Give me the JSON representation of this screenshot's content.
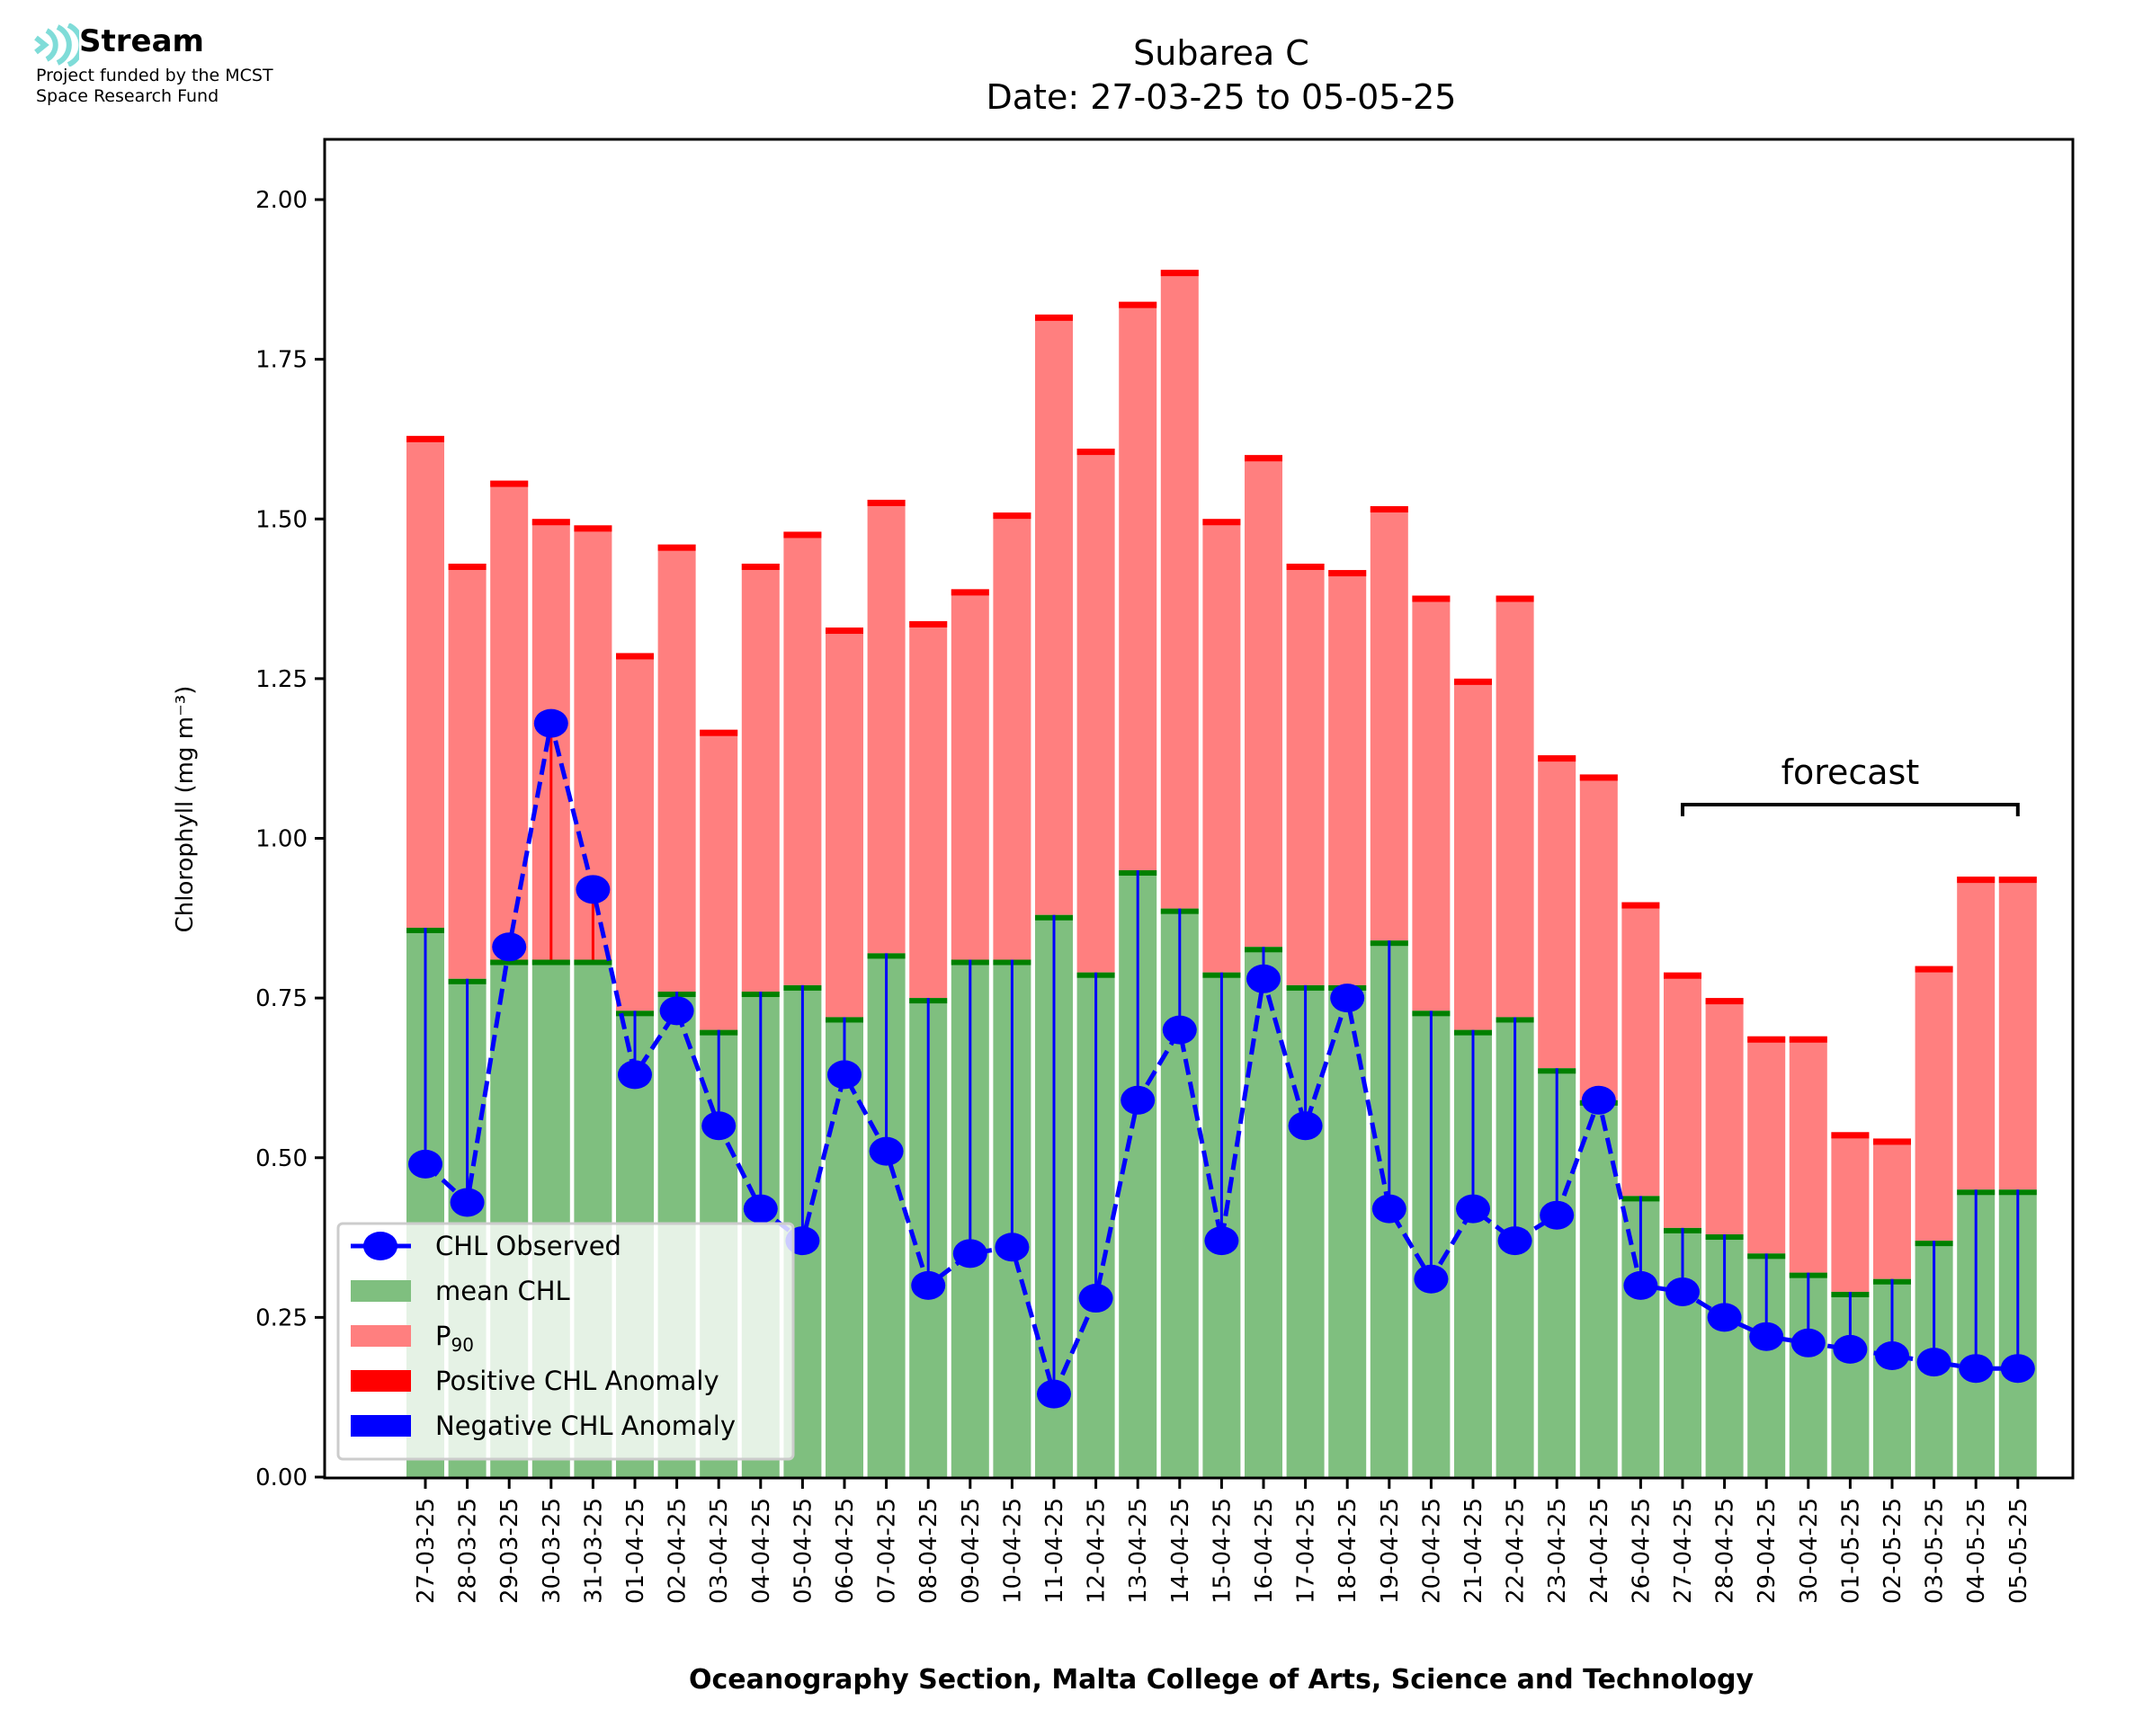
{
  "logo": {
    "brand": "Stream",
    "line1": "Project funded by the MCST",
    "line2": "Space Research Fund",
    "icon": "stream-waves-icon",
    "icon_color": "#7fdcd8"
  },
  "chart_data": {
    "type": "bar",
    "title": "Subarea C",
    "subtitle": "Date: 27-03-25 to 05-05-25",
    "xlabel": "Oceanography Section, Malta College of Arts, Science and Technology",
    "ylabel": "Chlorophyll (mg m⁻³)",
    "ylim": [
      0,
      2.09
    ],
    "yticks": [
      "0.00",
      "0.25",
      "0.50",
      "0.75",
      "1.00",
      "1.25",
      "1.50",
      "1.75",
      "2.00"
    ],
    "grid": false,
    "legend_position": "lower-left",
    "annotation": {
      "text": "forecast",
      "from": "27-04-25",
      "to": "05-05-25"
    },
    "categories": [
      "27-03-25",
      "28-03-25",
      "29-03-25",
      "30-03-25",
      "31-03-25",
      "01-04-25",
      "02-04-25",
      "03-04-25",
      "04-04-25",
      "05-04-25",
      "06-04-25",
      "07-04-25",
      "08-04-25",
      "09-04-25",
      "10-04-25",
      "11-04-25",
      "12-04-25",
      "13-04-25",
      "14-04-25",
      "15-04-25",
      "16-04-25",
      "17-04-25",
      "18-04-25",
      "19-04-25",
      "20-04-25",
      "21-04-25",
      "22-04-25",
      "23-04-25",
      "24-04-25",
      "26-04-25",
      "27-04-25",
      "28-04-25",
      "29-04-25",
      "30-04-25",
      "01-05-25",
      "02-05-25",
      "03-05-25",
      "04-05-25",
      "05-05-25"
    ],
    "series": [
      {
        "name": "mean CHL",
        "color": "#7fbf7f",
        "edge_color": "#008000",
        "values": [
          0.86,
          0.78,
          0.81,
          0.81,
          0.81,
          0.73,
          0.76,
          0.7,
          0.76,
          0.77,
          0.72,
          0.82,
          0.75,
          0.81,
          0.81,
          0.88,
          0.79,
          0.95,
          0.89,
          0.79,
          0.83,
          0.77,
          0.77,
          0.84,
          0.73,
          0.7,
          0.72,
          0.64,
          0.59,
          0.44,
          0.39,
          0.38,
          0.35,
          0.32,
          0.29,
          0.31,
          0.37,
          0.45,
          0.45
        ]
      },
      {
        "name": "P₉₀",
        "color": "#ff7f7f",
        "edge_color": "#ff0000",
        "values": [
          1.63,
          1.43,
          1.56,
          1.5,
          1.49,
          1.29,
          1.46,
          1.17,
          1.43,
          1.48,
          1.33,
          1.53,
          1.34,
          1.39,
          1.51,
          1.82,
          1.61,
          1.84,
          1.89,
          1.5,
          1.6,
          1.43,
          1.42,
          1.52,
          1.38,
          1.25,
          1.38,
          1.13,
          1.1,
          0.9,
          0.79,
          0.75,
          0.69,
          0.69,
          0.54,
          0.53,
          0.8,
          0.94,
          0.94
        ]
      },
      {
        "name": "CHL Observed",
        "color": "#0000ff",
        "values": [
          0.49,
          0.43,
          0.83,
          1.18,
          0.92,
          0.63,
          0.73,
          0.55,
          0.42,
          0.37,
          0.63,
          0.51,
          0.3,
          0.35,
          0.36,
          0.13,
          0.28,
          0.59,
          0.7,
          0.37,
          0.78,
          0.55,
          0.75,
          0.42,
          0.31,
          0.42,
          0.37,
          0.41,
          0.59,
          0.3,
          0.29,
          0.25,
          0.22,
          0.21,
          0.2,
          0.19,
          0.18,
          0.17,
          0.17
        ]
      }
    ],
    "legend": [
      {
        "label": "CHL Observed",
        "symbol": "line-marker",
        "color": "#0000ff"
      },
      {
        "label": "mean CHL",
        "symbol": "patch",
        "color": "#7fbf7f"
      },
      {
        "label": "P",
        "sub": "90",
        "symbol": "patch",
        "color": "#ff7f7f"
      },
      {
        "label": "Positive CHL Anomaly",
        "symbol": "patch",
        "color": "#ff0000"
      },
      {
        "label": "Negative CHL Anomaly",
        "symbol": "patch",
        "color": "#0000ff"
      }
    ]
  }
}
